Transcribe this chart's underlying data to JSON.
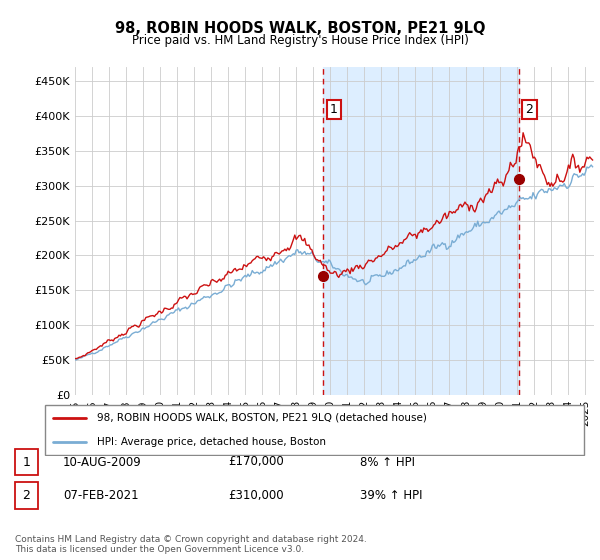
{
  "title": "98, ROBIN HOODS WALK, BOSTON, PE21 9LQ",
  "subtitle": "Price paid vs. HM Land Registry's House Price Index (HPI)",
  "ylabel_ticks": [
    "£0",
    "£50K",
    "£100K",
    "£150K",
    "£200K",
    "£250K",
    "£300K",
    "£350K",
    "£400K",
    "£450K"
  ],
  "ylabel_values": [
    0,
    50000,
    100000,
    150000,
    200000,
    250000,
    300000,
    350000,
    400000,
    450000
  ],
  "ylim": [
    0,
    470000
  ],
  "xlim_start": 1995.0,
  "xlim_end": 2025.5,
  "legend_line1": "98, ROBIN HOODS WALK, BOSTON, PE21 9LQ (detached house)",
  "legend_line2": "HPI: Average price, detached house, Boston",
  "sale1_label": "1",
  "sale1_date": "10-AUG-2009",
  "sale1_price": "£170,000",
  "sale1_hpi": "8% ↑ HPI",
  "sale2_label": "2",
  "sale2_date": "07-FEB-2021",
  "sale2_price": "£310,000",
  "sale2_hpi": "39% ↑ HPI",
  "footer": "Contains HM Land Registry data © Crown copyright and database right 2024.\nThis data is licensed under the Open Government Licence v3.0.",
  "hpi_color": "#7aadd4",
  "price_color": "#cc1111",
  "sale_marker_color": "#990000",
  "grid_color": "#cccccc",
  "background_color": "#ffffff",
  "shade_color": "#ddeeff",
  "sale1_x": 2009.58,
  "sale1_y": 170000,
  "sale2_x": 2021.08,
  "sale2_y": 310000,
  "sale1_vline_x": 2009.58,
  "sale2_vline_x": 2021.08
}
